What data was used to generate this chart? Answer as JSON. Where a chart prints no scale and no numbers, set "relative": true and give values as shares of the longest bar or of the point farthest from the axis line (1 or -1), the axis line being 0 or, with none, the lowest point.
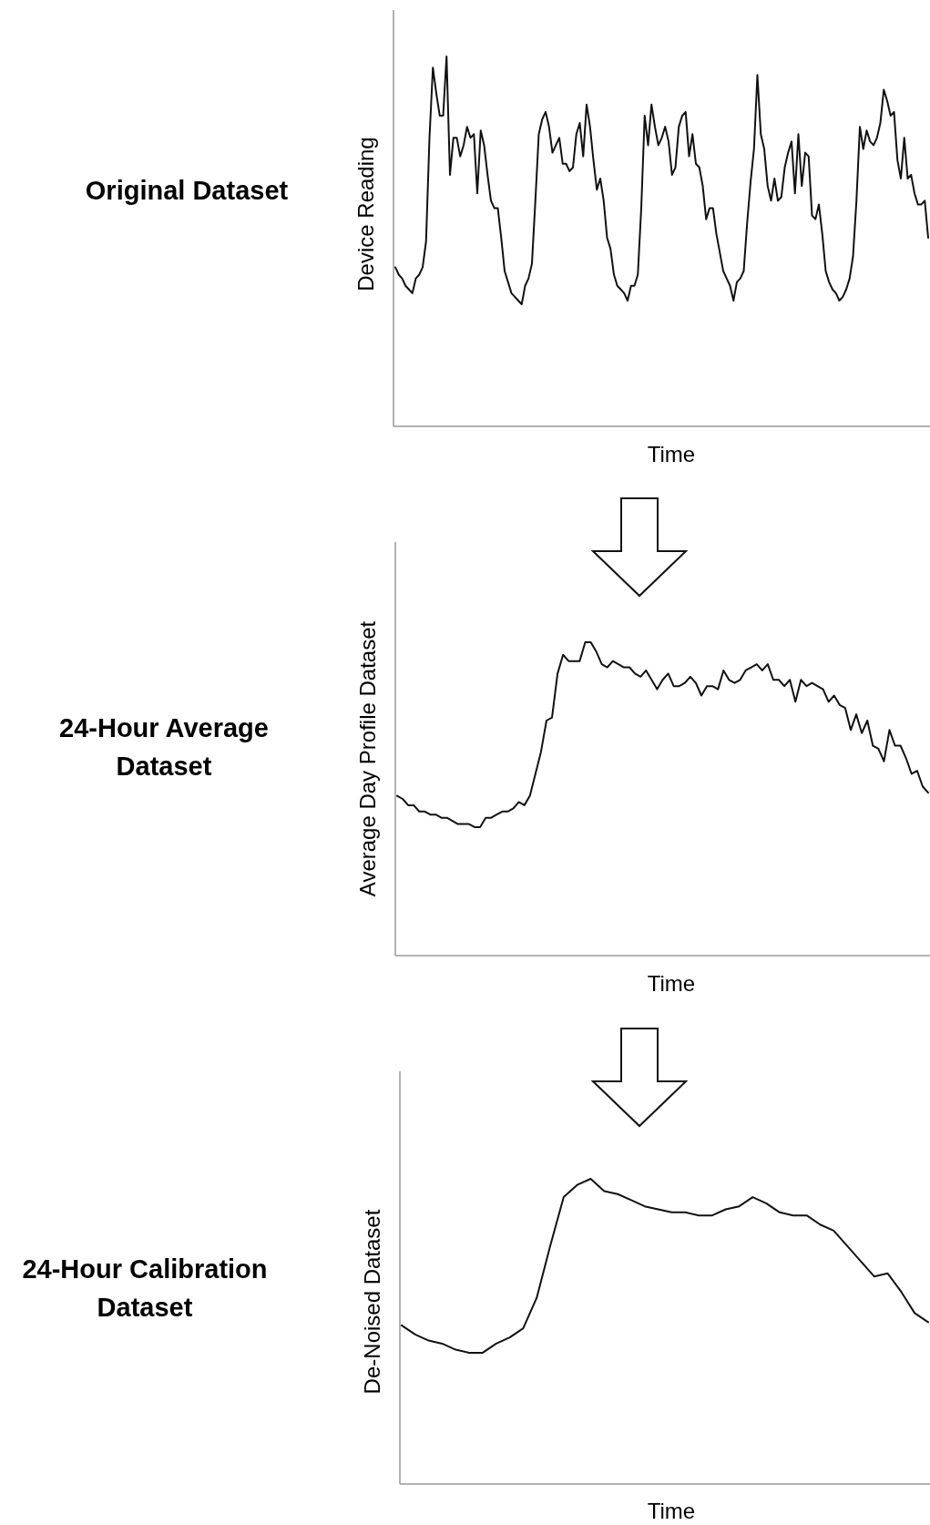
{
  "chart_data": [
    {
      "type": "line",
      "title": "Original Dataset",
      "xlabel": "Time",
      "ylabel": "Device Reading",
      "relative": true,
      "color": "#111111",
      "categories": [
        null,
        null,
        null,
        null,
        null,
        null,
        null,
        null,
        null,
        null,
        null,
        null,
        null,
        null,
        null,
        null,
        null,
        null,
        null,
        null,
        null,
        null,
        null,
        null,
        null,
        null,
        null,
        null,
        null,
        null,
        null,
        null,
        null,
        null,
        null,
        null,
        null,
        null,
        null,
        null,
        null,
        null,
        null,
        null,
        null,
        null,
        null,
        null,
        null,
        null,
        null,
        null,
        null,
        null,
        null,
        null,
        null,
        null,
        null,
        null,
        null,
        null,
        null,
        null,
        null,
        null,
        null,
        null,
        null,
        null,
        null,
        null,
        null,
        null,
        null,
        null,
        null,
        null,
        null,
        null,
        null,
        null,
        null,
        null,
        null,
        null,
        null,
        null,
        null,
        null,
        null,
        null,
        null,
        null,
        null,
        null,
        null,
        null,
        null,
        null,
        null,
        null,
        null,
        null,
        null,
        null,
        null,
        null,
        null,
        null,
        null,
        null,
        null,
        null,
        null,
        null,
        null,
        null,
        null,
        null,
        null,
        null,
        null,
        null,
        null,
        null,
        null,
        null,
        null,
        null,
        null,
        null,
        null,
        null,
        null,
        null,
        null,
        null,
        null,
        null,
        null,
        null,
        null,
        null,
        null,
        null,
        null,
        null,
        null,
        null,
        null,
        null,
        null,
        null,
        null,
        null,
        null
      ],
      "values": [
        0.43,
        0.41,
        0.4,
        0.38,
        0.37,
        0.36,
        0.4,
        0.41,
        0.43,
        0.5,
        0.78,
        0.97,
        0.9,
        0.84,
        0.84,
        1.0,
        0.68,
        0.78,
        0.78,
        0.73,
        0.76,
        0.81,
        0.78,
        0.79,
        0.63,
        0.8,
        0.76,
        0.68,
        0.61,
        0.59,
        0.59,
        0.51,
        0.42,
        0.39,
        0.36,
        0.35,
        0.34,
        0.33,
        0.38,
        0.4,
        0.44,
        0.61,
        0.79,
        0.83,
        0.85,
        0.81,
        0.74,
        0.76,
        0.78,
        0.71,
        0.71,
        0.69,
        0.7,
        0.79,
        0.82,
        0.73,
        0.87,
        0.81,
        0.72,
        0.64,
        0.67,
        0.61,
        0.51,
        0.48,
        0.41,
        0.38,
        0.37,
        0.36,
        0.34,
        0.38,
        0.38,
        0.41,
        0.59,
        0.84,
        0.76,
        0.87,
        0.81,
        0.76,
        0.78,
        0.81,
        0.77,
        0.68,
        0.7,
        0.81,
        0.84,
        0.85,
        0.73,
        0.79,
        0.71,
        0.7,
        0.65,
        0.56,
        0.59,
        0.59,
        0.52,
        0.47,
        0.42,
        0.4,
        0.38,
        0.34,
        0.39,
        0.4,
        0.42,
        0.55,
        0.66,
        0.75,
        0.95,
        0.79,
        0.75,
        0.65,
        0.61,
        0.67,
        0.61,
        0.62,
        0.7,
        0.74,
        0.77,
        0.63,
        0.79,
        0.65,
        0.74,
        0.73,
        0.57,
        0.56,
        0.6,
        0.52,
        0.42,
        0.39,
        0.37,
        0.36,
        0.34,
        0.35,
        0.37,
        0.4,
        0.46,
        0.61,
        0.81,
        0.75,
        0.8,
        0.77,
        0.76,
        0.78,
        0.82,
        0.91,
        0.88,
        0.84,
        0.85,
        0.72,
        0.67,
        0.78,
        0.67,
        0.68,
        0.63,
        0.6,
        0.6,
        0.61,
        0.51
      ]
    },
    {
      "type": "line",
      "title": "24-Hour Average Dataset",
      "xlabel": "Time",
      "ylabel": "Average Day Profile Dataset",
      "relative": true,
      "color": "#111111",
      "categories": [
        null,
        null,
        null,
        null,
        null,
        null,
        null,
        null,
        null,
        null,
        null,
        null,
        null,
        null,
        null,
        null,
        null,
        null,
        null,
        null,
        null,
        null,
        null,
        null,
        null,
        null,
        null,
        null,
        null,
        null,
        null,
        null,
        null,
        null,
        null,
        null,
        null,
        null,
        null,
        null,
        null,
        null,
        null,
        null,
        null,
        null,
        null,
        null,
        null,
        null,
        null,
        null,
        null,
        null,
        null,
        null,
        null,
        null,
        null,
        null,
        null,
        null,
        null,
        null,
        null,
        null,
        null,
        null,
        null,
        null,
        null,
        null,
        null,
        null,
        null,
        null,
        null,
        null,
        null,
        null,
        null,
        null,
        null,
        null,
        null,
        null,
        null,
        null,
        null,
        null,
        null,
        null,
        null,
        null,
        null,
        null,
        null
      ],
      "values": [
        0.51,
        0.5,
        0.48,
        0.48,
        0.46,
        0.46,
        0.45,
        0.45,
        0.44,
        0.44,
        0.43,
        0.42,
        0.42,
        0.42,
        0.41,
        0.41,
        0.44,
        0.44,
        0.45,
        0.46,
        0.46,
        0.47,
        0.49,
        0.48,
        0.51,
        0.58,
        0.65,
        0.75,
        0.76,
        0.9,
        0.96,
        0.94,
        0.94,
        0.94,
        1.0,
        1.0,
        0.97,
        0.93,
        0.92,
        0.94,
        0.93,
        0.92,
        0.92,
        0.9,
        0.89,
        0.91,
        0.88,
        0.85,
        0.88,
        0.9,
        0.86,
        0.86,
        0.87,
        0.89,
        0.87,
        0.83,
        0.86,
        0.86,
        0.85,
        0.91,
        0.88,
        0.87,
        0.88,
        0.91,
        0.92,
        0.93,
        0.91,
        0.93,
        0.88,
        0.88,
        0.86,
        0.88,
        0.81,
        0.88,
        0.86,
        0.87,
        0.86,
        0.85,
        0.81,
        0.83,
        0.8,
        0.79,
        0.72,
        0.77,
        0.71,
        0.75,
        0.67,
        0.66,
        0.62,
        0.72,
        0.67,
        0.67,
        0.63,
        0.58,
        0.59,
        0.54,
        0.52
      ]
    },
    {
      "type": "line",
      "title": "24-Hour Calibration Dataset",
      "xlabel": "Time",
      "ylabel": "De-Noised Dataset",
      "relative": true,
      "color": "#111111",
      "categories": [
        null,
        null,
        null,
        null,
        null,
        null,
        null,
        null,
        null,
        null,
        null,
        null,
        null,
        null,
        null,
        null,
        null,
        null,
        null,
        null,
        null,
        null,
        null,
        null,
        null,
        null,
        null,
        null,
        null,
        null,
        null,
        null,
        null,
        null,
        null,
        null,
        null,
        null,
        null,
        null
      ],
      "values": [
        0.52,
        0.49,
        0.47,
        0.46,
        0.44,
        0.43,
        0.43,
        0.46,
        0.48,
        0.51,
        0.61,
        0.78,
        0.94,
        0.98,
        1.0,
        0.96,
        0.95,
        0.93,
        0.91,
        0.9,
        0.89,
        0.89,
        0.88,
        0.88,
        0.9,
        0.91,
        0.94,
        0.92,
        0.89,
        0.88,
        0.88,
        0.85,
        0.83,
        0.78,
        0.73,
        0.68,
        0.69,
        0.63,
        0.56,
        0.53
      ]
    }
  ]
}
